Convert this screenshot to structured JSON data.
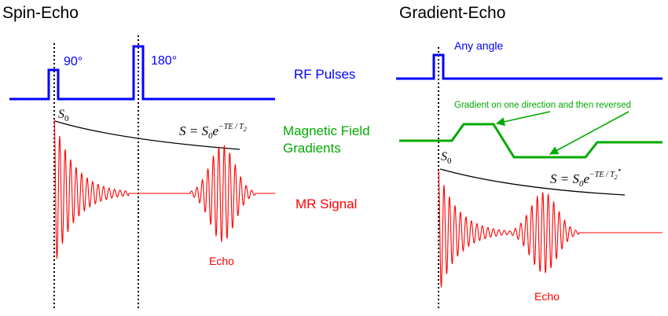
{
  "spin_echo": {
    "title": "Spin-Echo",
    "pulse_90_label": "90°",
    "pulse_180_label": "180°",
    "s0_label": "S",
    "s0_sub": "0",
    "equation": {
      "lhs": "S = S",
      "lhs_sub": "0",
      "base": "e",
      "exponent": "−TE / T",
      "exponent_sub": "2"
    },
    "echo_label": "Echo"
  },
  "center_labels": {
    "rf_pulses": "RF Pulses",
    "gradients_line1": "Magnetic Field",
    "gradients_line2": "Gradients",
    "mr_signal": "MR Signal"
  },
  "gradient_echo": {
    "title": "Gradient-Echo",
    "pulse_label": "Any angle",
    "gradient_annotation": "Gradient on one direction and then reversed",
    "s0_label": "S",
    "s0_sub": "0",
    "equation": {
      "lhs": "S = S",
      "lhs_sub": "0",
      "base": "e",
      "exponent": "−TE / T",
      "exponent_sub": "2",
      "exponent_sup": "*"
    },
    "echo_label": "Echo"
  },
  "colors": {
    "rf": "#0000ff",
    "gradient": "#00aa00",
    "signal": "#ff0000",
    "decay": "#000000"
  }
}
